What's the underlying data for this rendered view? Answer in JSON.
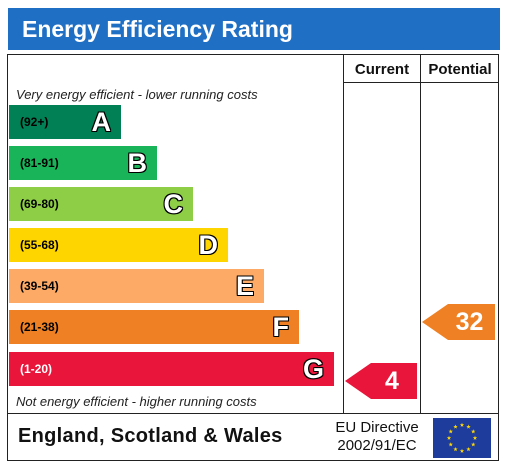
{
  "title": "Energy Efficiency Rating",
  "columns": {
    "current": "Current",
    "potential": "Potential"
  },
  "captions": {
    "top": "Very energy efficient - lower running costs",
    "bottom": "Not energy efficient - higher running costs"
  },
  "bands": [
    {
      "range": "(92+)",
      "letter": "A",
      "color": "#008054"
    },
    {
      "range": "(81-91)",
      "letter": "B",
      "color": "#19b459"
    },
    {
      "range": "(69-80)",
      "letter": "C",
      "color": "#8dce46"
    },
    {
      "range": "(55-68)",
      "letter": "D",
      "color": "#ffd500"
    },
    {
      "range": "(39-54)",
      "letter": "E",
      "color": "#fcaa65"
    },
    {
      "range": "(21-38)",
      "letter": "F",
      "color": "#ef8023"
    },
    {
      "range": "(1-20)",
      "letter": "G",
      "color": "#e9153b"
    }
  ],
  "ratings": {
    "current": {
      "value": "4",
      "band": "G",
      "color": "#e9153b"
    },
    "potential": {
      "value": "32",
      "band": "F",
      "color": "#ef8023"
    }
  },
  "footer": {
    "region": "England, Scotland & Wales",
    "directive_line1": "EU Directive",
    "directive_line2": "2002/91/EC",
    "flag_icon": "eu-flag-icon"
  }
}
